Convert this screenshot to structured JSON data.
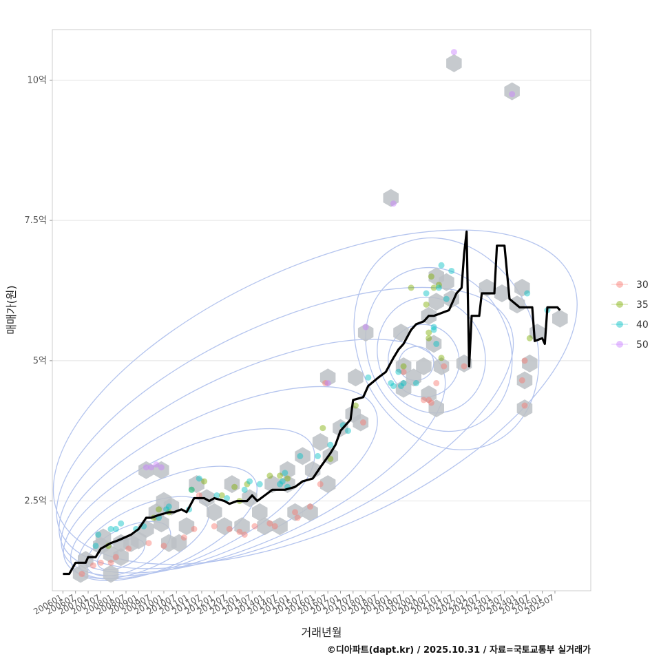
{
  "chart_data": {
    "type": "scatter",
    "ylabel": "매매가(원)",
    "xlabel": "거래년월",
    "credit": "©디아파트(dapt.kr) / 2025.10.31 / 자료=국토교통부 실거래가",
    "ylim": [
      0.9,
      10.9
    ],
    "xlim": [
      2005.58,
      2026.92
    ],
    "y_ticks": [
      {
        "value": 2.5,
        "label": "2.5억"
      },
      {
        "value": 5,
        "label": "5억"
      },
      {
        "value": 7.5,
        "label": "7.5억"
      },
      {
        "value": 10,
        "label": "10억"
      }
    ],
    "x_ticks": [
      "200601",
      "200607",
      "200701",
      "200707",
      "200801",
      "200807",
      "200901",
      "200907",
      "201001",
      "201007",
      "201101",
      "201107",
      "201201",
      "201207",
      "201301",
      "201307",
      "201401",
      "201407",
      "201501",
      "201507",
      "201601",
      "201607",
      "201701",
      "201707",
      "201801",
      "201807",
      "201901",
      "201907",
      "202001",
      "202007",
      "202101",
      "202107",
      "202201",
      "202207",
      "202301",
      "202307",
      "202401",
      "202407",
      "202501",
      "202507"
    ],
    "legend": {
      "entries": [
        {
          "label": "30",
          "color": "#F8766D"
        },
        {
          "label": "35",
          "color": "#7CAE00"
        },
        {
          "label": "40",
          "color": "#00BFC4"
        },
        {
          "label": "50",
          "color": "#C77CFF"
        }
      ]
    },
    "series": [
      {
        "name": "30",
        "color": "#F8766D",
        "points": [
          [
            2006.75,
            1.2
          ],
          [
            2007.2,
            1.35
          ],
          [
            2007.5,
            1.4
          ],
          [
            2007.9,
            1.4
          ],
          [
            2008.1,
            1.5
          ],
          [
            2008.6,
            1.65
          ],
          [
            2009.4,
            1.75
          ],
          [
            2010.0,
            1.7
          ],
          [
            2010.8,
            1.85
          ],
          [
            2011.2,
            2.0
          ],
          [
            2011.4,
            2.6
          ],
          [
            2012.0,
            2.05
          ],
          [
            2012.6,
            2.0
          ],
          [
            2013.0,
            1.95
          ],
          [
            2013.2,
            1.9
          ],
          [
            2013.6,
            2.05
          ],
          [
            2014.2,
            2.1
          ],
          [
            2014.4,
            2.05
          ],
          [
            2015.2,
            2.3
          ],
          [
            2015.3,
            2.2
          ],
          [
            2015.8,
            2.4
          ],
          [
            2016.2,
            2.8
          ],
          [
            2016.4,
            4.6
          ],
          [
            2017.9,
            3.9
          ],
          [
            2019.5,
            4.8
          ],
          [
            2020.3,
            4.3
          ],
          [
            2020.5,
            4.3
          ],
          [
            2020.6,
            4.25
          ],
          [
            2020.8,
            4.6
          ],
          [
            2021.1,
            4.9
          ],
          [
            2021.9,
            4.9
          ],
          [
            2024.2,
            4.65
          ],
          [
            2024.3,
            5.0
          ],
          [
            2024.3,
            4.2
          ]
        ]
      },
      {
        "name": "35",
        "color": "#7CAE00",
        "points": [
          [
            2007.8,
            1.7
          ],
          [
            2009.6,
            2.2
          ],
          [
            2009.8,
            2.35
          ],
          [
            2010.2,
            2.3
          ],
          [
            2011.1,
            2.7
          ],
          [
            2011.6,
            2.85
          ],
          [
            2012.3,
            2.6
          ],
          [
            2012.8,
            2.75
          ],
          [
            2013.0,
            2.5
          ],
          [
            2013.3,
            2.8
          ],
          [
            2014.2,
            2.95
          ],
          [
            2014.6,
            2.95
          ],
          [
            2014.9,
            2.9
          ],
          [
            2016.3,
            3.8
          ],
          [
            2016.6,
            3.25
          ],
          [
            2017.6,
            4.2
          ],
          [
            2019.5,
            4.9
          ],
          [
            2019.8,
            6.3
          ],
          [
            2020.4,
            6.0
          ],
          [
            2020.6,
            6.5
          ],
          [
            2020.7,
            6.3
          ],
          [
            2020.9,
            6.35
          ],
          [
            2020.5,
            5.5
          ],
          [
            2020.5,
            5.4
          ],
          [
            2021.0,
            5.05
          ],
          [
            2024.5,
            5.4
          ]
        ]
      },
      {
        "name": "40",
        "color": "#00BFC4",
        "points": [
          [
            2007.3,
            1.7
          ],
          [
            2007.4,
            1.9
          ],
          [
            2007.9,
            2.0
          ],
          [
            2008.1,
            2.0
          ],
          [
            2008.3,
            2.1
          ],
          [
            2008.9,
            2.0
          ],
          [
            2009.2,
            2.05
          ],
          [
            2009.8,
            2.2
          ],
          [
            2010.1,
            2.35
          ],
          [
            2010.2,
            2.4
          ],
          [
            2011.0,
            2.35
          ],
          [
            2011.1,
            2.7
          ],
          [
            2011.4,
            2.9
          ],
          [
            2012.1,
            2.6
          ],
          [
            2012.5,
            2.55
          ],
          [
            2013.2,
            2.7
          ],
          [
            2013.4,
            2.85
          ],
          [
            2013.8,
            2.8
          ],
          [
            2014.6,
            2.8
          ],
          [
            2014.9,
            2.75
          ],
          [
            2014.7,
            2.85
          ],
          [
            2014.8,
            3.0
          ],
          [
            2015.4,
            3.3
          ],
          [
            2016.1,
            3.3
          ],
          [
            2016.6,
            3.5
          ],
          [
            2017.1,
            3.85
          ],
          [
            2017.3,
            3.75
          ],
          [
            2018.1,
            4.7
          ],
          [
            2019.0,
            4.6
          ],
          [
            2019.1,
            4.55
          ],
          [
            2019.3,
            4.8
          ],
          [
            2019.4,
            4.55
          ],
          [
            2019.5,
            4.6
          ],
          [
            2020.0,
            4.6
          ],
          [
            2020.4,
            6.2
          ],
          [
            2020.7,
            5.6
          ],
          [
            2020.7,
            5.55
          ],
          [
            2020.8,
            5.3
          ],
          [
            2020.9,
            6.3
          ],
          [
            2021.0,
            6.7
          ],
          [
            2021.2,
            6.1
          ],
          [
            2021.4,
            6.6
          ],
          [
            2024.4,
            6.2
          ],
          [
            2025.2,
            5.9
          ]
        ]
      },
      {
        "name": "50",
        "color": "#C77CFF",
        "points": [
          [
            2009.3,
            3.1
          ],
          [
            2009.5,
            3.1
          ],
          [
            2009.7,
            3.15
          ],
          [
            2009.9,
            3.1
          ],
          [
            2016.5,
            4.6
          ],
          [
            2018.0,
            5.6
          ],
          [
            2019.1,
            7.8
          ],
          [
            2021.5,
            10.5
          ],
          [
            2023.8,
            9.75
          ]
        ]
      }
    ],
    "line": {
      "name": "median",
      "color": "#000000",
      "points": [
        [
          2006.0,
          1.2
        ],
        [
          2006.25,
          1.2
        ],
        [
          2006.5,
          1.4
        ],
        [
          2006.9,
          1.4
        ],
        [
          2007.0,
          1.5
        ],
        [
          2007.3,
          1.5
        ],
        [
          2007.5,
          1.65
        ],
        [
          2007.9,
          1.75
        ],
        [
          2008.2,
          1.8
        ],
        [
          2008.7,
          1.9
        ],
        [
          2009.0,
          2.0
        ],
        [
          2009.3,
          2.2
        ],
        [
          2009.5,
          2.2
        ],
        [
          2009.8,
          2.25
        ],
        [
          2010.2,
          2.3
        ],
        [
          2010.4,
          2.3
        ],
        [
          2010.7,
          2.35
        ],
        [
          2010.9,
          2.3
        ],
        [
          2011.2,
          2.55
        ],
        [
          2011.6,
          2.55
        ],
        [
          2011.8,
          2.5
        ],
        [
          2012.0,
          2.55
        ],
        [
          2012.4,
          2.5
        ],
        [
          2012.6,
          2.45
        ],
        [
          2012.9,
          2.5
        ],
        [
          2013.3,
          2.5
        ],
        [
          2013.5,
          2.6
        ],
        [
          2013.7,
          2.5
        ],
        [
          2014.0,
          2.6
        ],
        [
          2014.3,
          2.7
        ],
        [
          2014.8,
          2.7
        ],
        [
          2015.2,
          2.75
        ],
        [
          2015.5,
          2.85
        ],
        [
          2015.9,
          2.9
        ],
        [
          2016.2,
          3.1
        ],
        [
          2016.6,
          3.35
        ],
        [
          2016.8,
          3.5
        ],
        [
          2017.0,
          3.75
        ],
        [
          2017.4,
          3.95
        ],
        [
          2017.5,
          4.3
        ],
        [
          2017.9,
          4.35
        ],
        [
          2018.1,
          4.55
        ],
        [
          2018.5,
          4.7
        ],
        [
          2018.8,
          4.8
        ],
        [
          2019.1,
          5.05
        ],
        [
          2019.3,
          5.2
        ],
        [
          2019.5,
          5.3
        ],
        [
          2019.8,
          5.55
        ],
        [
          2020.0,
          5.65
        ],
        [
          2020.3,
          5.7
        ],
        [
          2020.5,
          5.8
        ],
        [
          2020.7,
          5.8
        ],
        [
          2021.0,
          5.85
        ],
        [
          2021.3,
          5.9
        ],
        [
          2021.6,
          6.2
        ],
        [
          2021.8,
          6.3
        ],
        [
          2021.9,
          6.9
        ],
        [
          2022.0,
          7.3
        ],
        [
          2022.1,
          4.9
        ],
        [
          2022.2,
          5.8
        ],
        [
          2022.5,
          5.8
        ],
        [
          2022.6,
          6.2
        ],
        [
          2022.9,
          6.2
        ],
        [
          2023.1,
          6.2
        ],
        [
          2023.2,
          7.05
        ],
        [
          2023.5,
          7.05
        ],
        [
          2023.7,
          6.1
        ],
        [
          2024.1,
          5.95
        ],
        [
          2024.6,
          5.95
        ],
        [
          2024.7,
          5.35
        ],
        [
          2025.0,
          5.4
        ],
        [
          2025.1,
          5.3
        ],
        [
          2025.2,
          5.95
        ],
        [
          2025.6,
          5.95
        ],
        [
          2025.7,
          5.9
        ]
      ]
    },
    "hex_bins": [
      [
        2006.7,
        1.2
      ],
      [
        2006.9,
        1.45
      ],
      [
        2007.5,
        1.7
      ],
      [
        2007.6,
        1.85
      ],
      [
        2007.9,
        1.2
      ],
      [
        2007.9,
        1.55
      ],
      [
        2008.3,
        1.5
      ],
      [
        2008.3,
        1.75
      ],
      [
        2008.7,
        1.75
      ],
      [
        2009.0,
        1.8
      ],
      [
        2009.3,
        2.0
      ],
      [
        2009.7,
        2.3
      ],
      [
        2009.9,
        2.1
      ],
      [
        2010.0,
        2.5
      ],
      [
        2010.3,
        2.4
      ],
      [
        2010.2,
        1.75
      ],
      [
        2010.6,
        1.75
      ],
      [
        2009.3,
        3.05
      ],
      [
        2009.9,
        3.05
      ],
      [
        2010.9,
        2.05
      ],
      [
        2011.3,
        2.8
      ],
      [
        2011.7,
        2.55
      ],
      [
        2012.0,
        2.3
      ],
      [
        2012.4,
        2.05
      ],
      [
        2012.7,
        2.8
      ],
      [
        2013.1,
        2.05
      ],
      [
        2013.4,
        2.55
      ],
      [
        2013.8,
        2.3
      ],
      [
        2014.0,
        2.05
      ],
      [
        2014.3,
        2.8
      ],
      [
        2014.6,
        2.05
      ],
      [
        2014.9,
        3.05
      ],
      [
        2014.9,
        2.8
      ],
      [
        2015.2,
        2.3
      ],
      [
        2015.5,
        3.3
      ],
      [
        2015.9,
        3.05
      ],
      [
        2015.8,
        2.3
      ],
      [
        2016.2,
        3.55
      ],
      [
        2016.5,
        4.7
      ],
      [
        2016.5,
        2.8
      ],
      [
        2016.6,
        3.3
      ],
      [
        2017.0,
        3.8
      ],
      [
        2017.5,
        4.05
      ],
      [
        2017.6,
        4.7
      ],
      [
        2017.8,
        3.9
      ],
      [
        2018.0,
        5.5
      ],
      [
        2019.4,
        5.5
      ],
      [
        2019.5,
        4.9
      ],
      [
        2019.5,
        4.5
      ],
      [
        2019.9,
        4.7
      ],
      [
        2020.3,
        4.9
      ],
      [
        2020.5,
        5.8
      ],
      [
        2020.5,
        4.4
      ],
      [
        2020.7,
        5.3
      ],
      [
        2020.8,
        6.5
      ],
      [
        2020.8,
        6.05
      ],
      [
        2020.8,
        4.15
      ],
      [
        2021.0,
        4.9
      ],
      [
        2021.2,
        6.4
      ],
      [
        2021.4,
        6.1
      ],
      [
        2021.5,
        10.3
      ],
      [
        2021.9,
        4.95
      ],
      [
        2019.0,
        7.9
      ],
      [
        2022.8,
        6.3
      ],
      [
        2023.4,
        6.2
      ],
      [
        2023.8,
        9.8
      ],
      [
        2024.0,
        6.0
      ],
      [
        2024.2,
        6.3
      ],
      [
        2024.3,
        4.15
      ],
      [
        2024.3,
        4.65
      ],
      [
        2024.5,
        4.95
      ],
      [
        2024.8,
        5.5
      ],
      [
        2025.7,
        5.75
      ]
    ],
    "contours": [
      {
        "cx": 2008.3,
        "cy": 1.55,
        "rx": 1.0,
        "ry": 0.22
      },
      {
        "cx": 2008.6,
        "cy": 1.65,
        "rx": 1.8,
        "ry": 0.38
      },
      {
        "cx": 2009.2,
        "cy": 1.85,
        "rx": 2.8,
        "ry": 0.55
      },
      {
        "cx": 2010.0,
        "cy": 2.1,
        "rx": 4.0,
        "ry": 0.75
      },
      {
        "cx": 2011.0,
        "cy": 2.45,
        "rx": 5.4,
        "ry": 0.95
      },
      {
        "cx": 2012.2,
        "cy": 2.85,
        "rx": 6.8,
        "ry": 1.2
      },
      {
        "cx": 2013.5,
        "cy": 3.3,
        "rx": 8.3,
        "ry": 1.5
      },
      {
        "cx": 2014.8,
        "cy": 3.8,
        "rx": 9.8,
        "ry": 1.85
      },
      {
        "cx": 2016.0,
        "cy": 4.35,
        "rx": 11.2,
        "ry": 2.3
      },
      {
        "cx": 2020.0,
        "cy": 4.95,
        "rx": 0.7,
        "ry": 0.3
      },
      {
        "cx": 2020.3,
        "cy": 5.0,
        "rx": 1.4,
        "ry": 0.65
      },
      {
        "cx": 2020.6,
        "cy": 5.1,
        "rx": 2.1,
        "ry": 1.05
      },
      {
        "cx": 2020.9,
        "cy": 5.2,
        "rx": 2.8,
        "ry": 1.5
      },
      {
        "cx": 2021.2,
        "cy": 5.3,
        "rx": 3.5,
        "ry": 1.95
      }
    ]
  }
}
